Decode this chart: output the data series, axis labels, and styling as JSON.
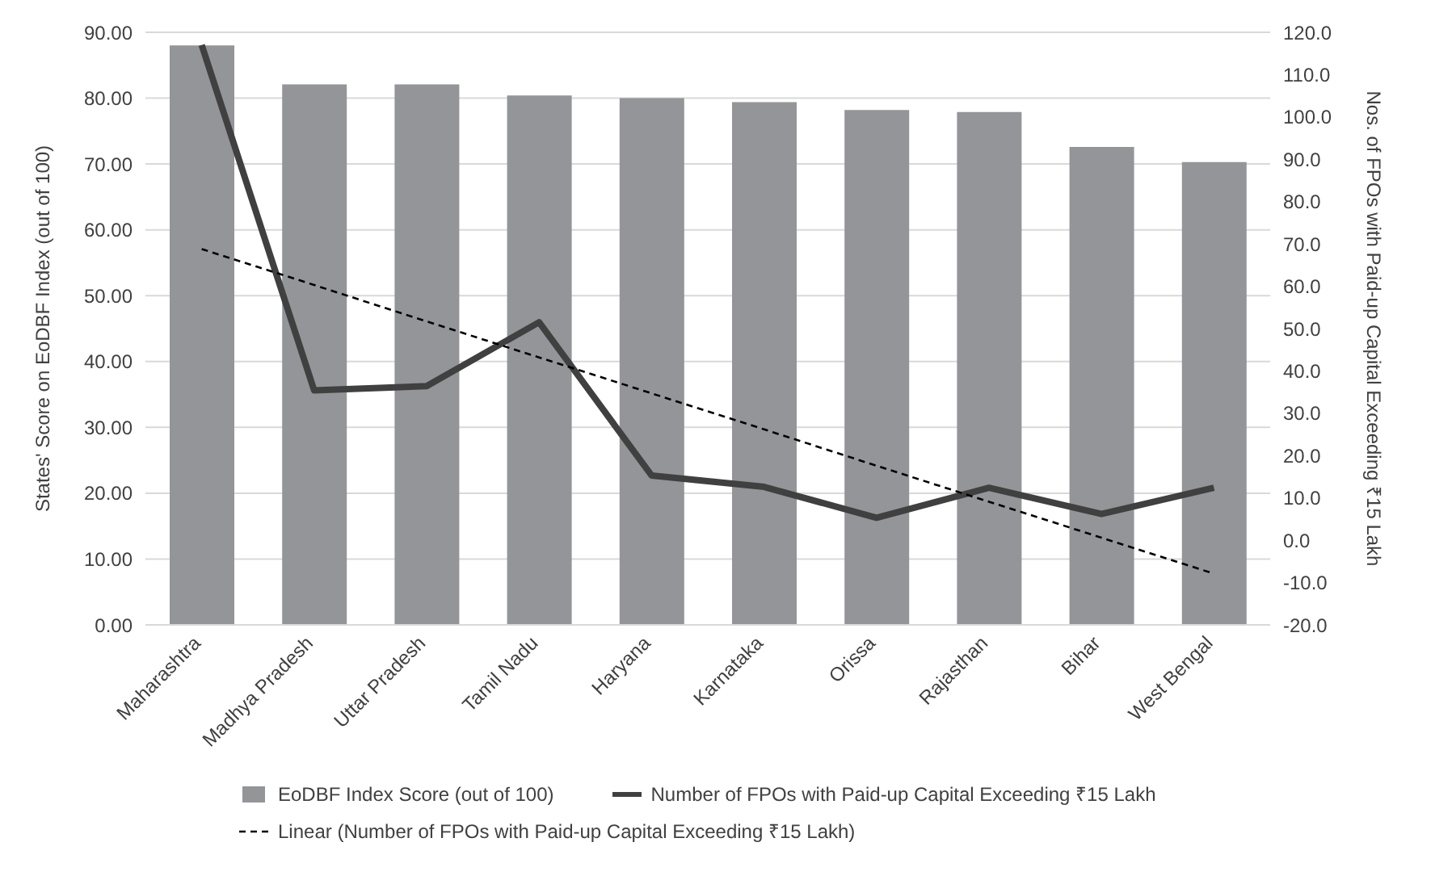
{
  "chart_data": {
    "type": "bar",
    "ylabel": "States' Score on EoDBF Index (out of 100)",
    "y2label": "Nos. of FPOs with Paid-up Capital Exceeding ₹15 Lakh",
    "categories": [
      "Maharashtra",
      "Madhya Pradesh",
      "Uttar Pradesh",
      "Tamil Nadu",
      "Haryana",
      "Karnataka",
      "Orissa",
      "Rajasthan",
      "Bihar",
      "West Bengal"
    ],
    "series": [
      {
        "name": "EoDBF Index Score (out of 100)",
        "color": "#939598",
        "values": [
          88.0,
          82.1,
          82.1,
          80.4,
          80.0,
          79.4,
          78.2,
          77.9,
          72.6,
          70.3
        ]
      },
      {
        "name": "Number of  FPOs with Paid-up Capital Exceeding ₹15 Lakh",
        "type": "line",
        "axis": "y2",
        "color": "#404040",
        "line_style": "solid",
        "values": [
          117.0,
          35.4,
          36.4,
          51.5,
          15.3,
          12.6,
          5.3,
          12.4,
          6.2,
          12.4
        ]
      },
      {
        "name": "Linear (Number of  FPOs with Paid-up Capital Exceeding ₹15 Lakh)",
        "type": "line",
        "axis": "y2",
        "color": "#000000",
        "line_style": "dashed",
        "values": [
          68.8,
          60.3,
          51.7,
          43.2,
          34.7,
          26.2,
          17.6,
          9.1,
          0.6,
          -7.9
        ]
      }
    ],
    "ylim": [
      0,
      90
    ],
    "yticks": [
      {
        "value": 0,
        "label": "0.00"
      },
      {
        "value": 10,
        "label": "10.00"
      },
      {
        "value": 20,
        "label": "20.00"
      },
      {
        "value": 30,
        "label": "30.00"
      },
      {
        "value": 40,
        "label": "40.00"
      },
      {
        "value": 50,
        "label": "50.00"
      },
      {
        "value": 60,
        "label": "60.00"
      },
      {
        "value": 70,
        "label": "70.00"
      },
      {
        "value": 80,
        "label": "80.00"
      },
      {
        "value": 90,
        "label": "90.00"
      }
    ],
    "y2lim": [
      -20,
      120
    ],
    "y2ticks": [
      {
        "value": -20,
        "label": "-20.0"
      },
      {
        "value": -10,
        "label": "-10.0"
      },
      {
        "value": 0,
        "label": "0.0"
      },
      {
        "value": 10,
        "label": "10.0"
      },
      {
        "value": 20,
        "label": "20.0"
      },
      {
        "value": 30,
        "label": "30.0"
      },
      {
        "value": 40,
        "label": "40.0"
      },
      {
        "value": 50,
        "label": "50.0"
      },
      {
        "value": 60,
        "label": "60.0"
      },
      {
        "value": 70,
        "label": "70.0"
      },
      {
        "value": 80,
        "label": "80.0"
      },
      {
        "value": 90,
        "label": "90.0"
      },
      {
        "value": 100,
        "label": "100.0"
      },
      {
        "value": 110,
        "label": "110.0"
      },
      {
        "value": 120,
        "label": "120.0"
      }
    ],
    "grid": "y",
    "legend": "bottom",
    "marker": "none"
  }
}
